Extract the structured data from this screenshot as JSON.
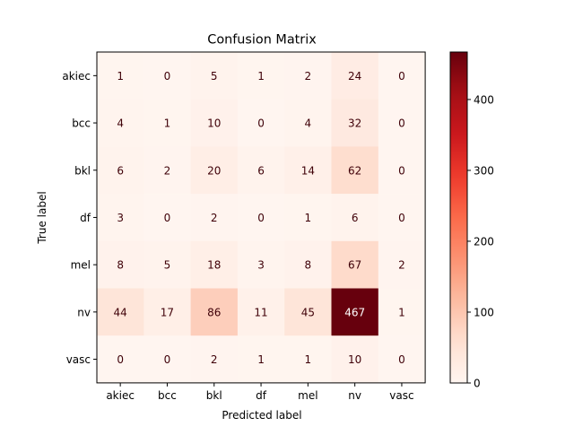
{
  "chart_data": {
    "type": "heatmap",
    "title": "Confusion Matrix",
    "xlabel": "Predicted label",
    "ylabel": "True label",
    "x_categories": [
      "akiec",
      "bcc",
      "bkl",
      "df",
      "mel",
      "nv",
      "vasc"
    ],
    "y_categories": [
      "akiec",
      "bcc",
      "bkl",
      "df",
      "mel",
      "nv",
      "vasc"
    ],
    "values": [
      [
        1,
        0,
        5,
        1,
        2,
        24,
        0
      ],
      [
        4,
        1,
        10,
        0,
        4,
        32,
        0
      ],
      [
        6,
        2,
        20,
        6,
        14,
        62,
        0
      ],
      [
        3,
        0,
        2,
        0,
        1,
        6,
        0
      ],
      [
        8,
        5,
        18,
        3,
        8,
        67,
        2
      ],
      [
        44,
        17,
        86,
        11,
        45,
        467,
        1
      ],
      [
        0,
        0,
        2,
        1,
        1,
        10,
        0
      ]
    ],
    "colormap": "Reds",
    "colorbar": {
      "range": [
        0,
        467
      ],
      "ticks": [
        0,
        100,
        200,
        300,
        400
      ]
    },
    "grid": false,
    "legend": "none"
  }
}
